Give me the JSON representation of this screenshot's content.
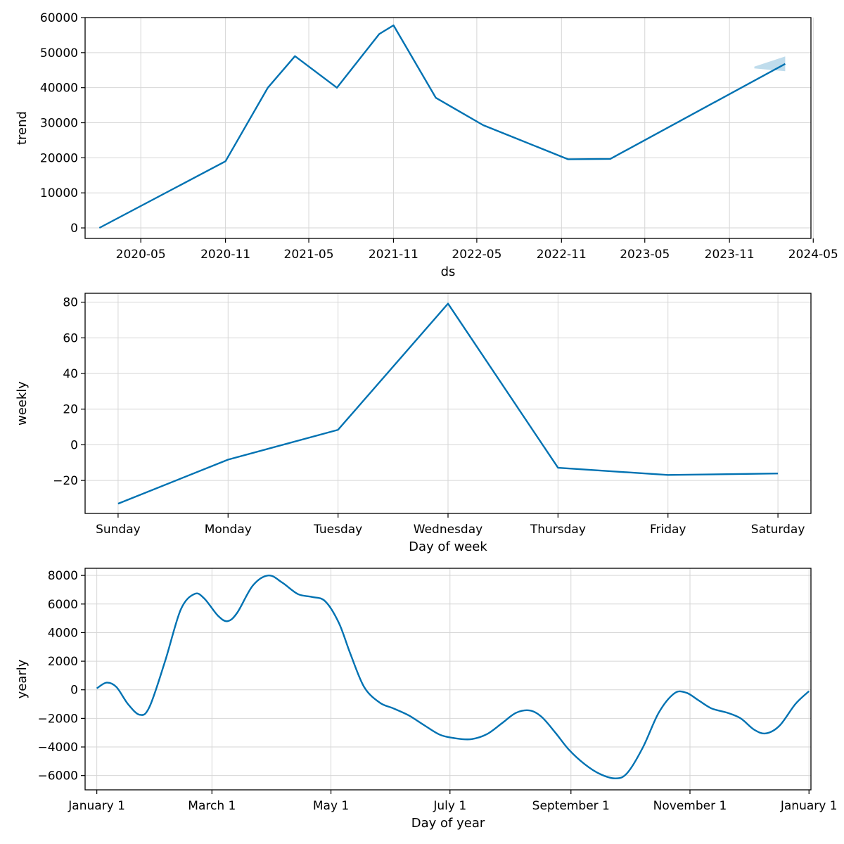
{
  "colors": {
    "series": "#0072B2",
    "band": "#0072B2",
    "grid": "#d6d6d6"
  },
  "chart_data": [
    {
      "type": "line",
      "name": "trend-chart",
      "xlabel": "ds",
      "ylabel": "trend",
      "x_axis": "date",
      "xlim": [
        "2020-01-01",
        "2024-04-26"
      ],
      "ylim": [
        -3000,
        60000
      ],
      "yticks": [
        0,
        10000,
        20000,
        30000,
        40000,
        50000,
        60000
      ],
      "ytick_labels": [
        "0",
        "10000",
        "20000",
        "30000",
        "40000",
        "50000",
        "60000"
      ],
      "xticks": [
        "2020-05-01",
        "2020-11-01",
        "2021-05-01",
        "2021-11-01",
        "2022-05-01",
        "2022-11-01",
        "2023-05-01",
        "2023-11-01",
        "2024-05-01"
      ],
      "xtick_labels": [
        "2020-05",
        "2020-11",
        "2021-05",
        "2021-11",
        "2022-05",
        "2022-11",
        "2023-05",
        "2023-11",
        "2024-05"
      ],
      "grid": true,
      "points": [
        {
          "x": "2020-02-01",
          "y": 0
        },
        {
          "x": "2020-11-01",
          "y": 19000
        },
        {
          "x": "2021-02-01",
          "y": 40000
        },
        {
          "x": "2021-04-01",
          "y": 49000
        },
        {
          "x": "2021-07-01",
          "y": 40000
        },
        {
          "x": "2021-10-01",
          "y": 55300
        },
        {
          "x": "2021-11-01",
          "y": 57800
        },
        {
          "x": "2022-02-01",
          "y": 37100
        },
        {
          "x": "2022-05-15",
          "y": 29300
        },
        {
          "x": "2022-07-15",
          "y": 26100
        },
        {
          "x": "2022-11-15",
          "y": 19600
        },
        {
          "x": "2023-02-15",
          "y": 19700
        },
        {
          "x": "2024-03-01",
          "y": 46800
        }
      ],
      "uncertainty": [
        {
          "x": "2023-12-25",
          "lower": 45500,
          "upper": 46000
        },
        {
          "x": "2024-03-01",
          "lower": 44700,
          "upper": 48900
        }
      ]
    },
    {
      "type": "line",
      "name": "weekly-chart",
      "xlabel": "Day of week",
      "ylabel": "weekly",
      "categories": [
        "Sunday",
        "Monday",
        "Tuesday",
        "Wednesday",
        "Thursday",
        "Friday",
        "Saturday"
      ],
      "values": [
        -33,
        -8.3,
        8.4,
        79.2,
        -12.9,
        -16.9,
        -16.1
      ],
      "ylim": [
        -38.5,
        85
      ],
      "yticks": [
        -20,
        0,
        20,
        40,
        60,
        80
      ],
      "ytick_labels": [
        "−20",
        "0",
        "20",
        "40",
        "60",
        "80"
      ],
      "grid": true
    },
    {
      "type": "line",
      "name": "yearly-chart",
      "xlabel": "Day of year",
      "ylabel": "yearly",
      "xlim": [
        -6,
        366
      ],
      "ylim": [
        -7000,
        8500
      ],
      "yticks": [
        -6000,
        -4000,
        -2000,
        0,
        2000,
        4000,
        6000,
        8000
      ],
      "ytick_labels": [
        "−6000",
        "−4000",
        "−2000",
        "0",
        "2000",
        "4000",
        "6000",
        "8000"
      ],
      "xticks": [
        0,
        59,
        120,
        181,
        243,
        304,
        365
      ],
      "xtick_labels": [
        "January 1",
        "March 1",
        "May 1",
        "July 1",
        "September 1",
        "November 1",
        "January 1"
      ],
      "grid": true,
      "points": [
        {
          "x": 0,
          "y": 100
        },
        {
          "x": 5,
          "y": 500
        },
        {
          "x": 10,
          "y": 200
        },
        {
          "x": 16,
          "y": -1000
        },
        {
          "x": 22,
          "y": -1750
        },
        {
          "x": 27,
          "y": -1200
        },
        {
          "x": 35,
          "y": 2000
        },
        {
          "x": 43,
          "y": 5600
        },
        {
          "x": 50,
          "y": 6700
        },
        {
          "x": 55,
          "y": 6400
        },
        {
          "x": 62,
          "y": 5200
        },
        {
          "x": 67,
          "y": 4800
        },
        {
          "x": 72,
          "y": 5400
        },
        {
          "x": 80,
          "y": 7300
        },
        {
          "x": 88,
          "y": 8000
        },
        {
          "x": 95,
          "y": 7500
        },
        {
          "x": 103,
          "y": 6700
        },
        {
          "x": 110,
          "y": 6500
        },
        {
          "x": 117,
          "y": 6200
        },
        {
          "x": 124,
          "y": 4700
        },
        {
          "x": 130,
          "y": 2500
        },
        {
          "x": 137,
          "y": 200
        },
        {
          "x": 145,
          "y": -900
        },
        {
          "x": 152,
          "y": -1300
        },
        {
          "x": 160,
          "y": -1800
        },
        {
          "x": 168,
          "y": -2500
        },
        {
          "x": 176,
          "y": -3150
        },
        {
          "x": 184,
          "y": -3400
        },
        {
          "x": 192,
          "y": -3450
        },
        {
          "x": 200,
          "y": -3100
        },
        {
          "x": 208,
          "y": -2300
        },
        {
          "x": 215,
          "y": -1600
        },
        {
          "x": 222,
          "y": -1450
        },
        {
          "x": 228,
          "y": -1900
        },
        {
          "x": 235,
          "y": -3000
        },
        {
          "x": 242,
          "y": -4200
        },
        {
          "x": 250,
          "y": -5200
        },
        {
          "x": 258,
          "y": -5900
        },
        {
          "x": 266,
          "y": -6200
        },
        {
          "x": 272,
          "y": -5800
        },
        {
          "x": 280,
          "y": -4000
        },
        {
          "x": 288,
          "y": -1600
        },
        {
          "x": 296,
          "y": -250
        },
        {
          "x": 302,
          "y": -200
        },
        {
          "x": 308,
          "y": -700
        },
        {
          "x": 315,
          "y": -1300
        },
        {
          "x": 323,
          "y": -1600
        },
        {
          "x": 330,
          "y": -2000
        },
        {
          "x": 337,
          "y": -2800
        },
        {
          "x": 343,
          "y": -3050
        },
        {
          "x": 350,
          "y": -2500
        },
        {
          "x": 358,
          "y": -1000
        },
        {
          "x": 365,
          "y": -100
        }
      ]
    }
  ]
}
